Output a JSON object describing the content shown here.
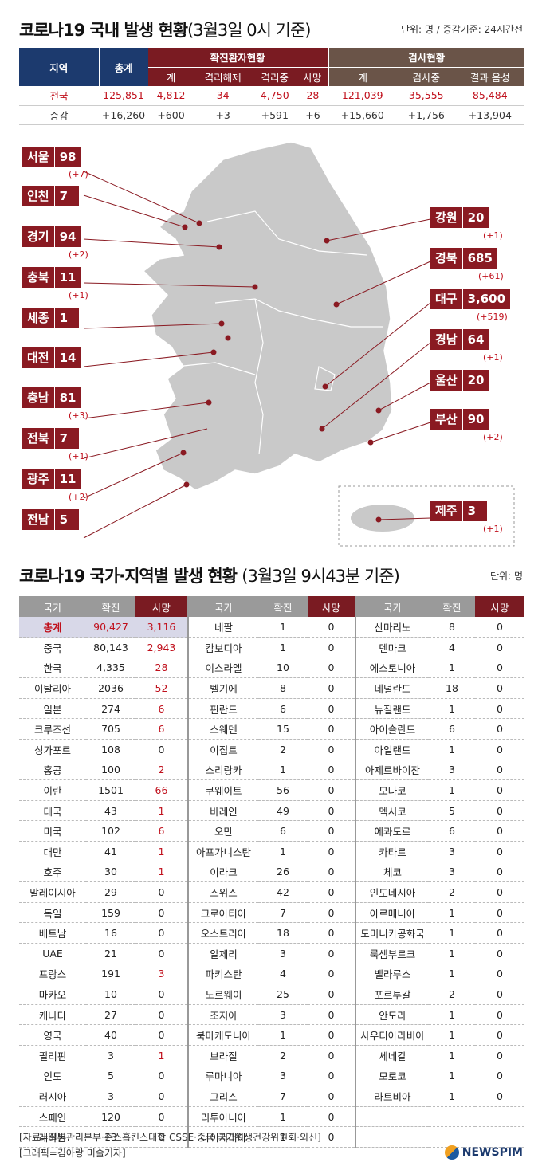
{
  "top": {
    "title": "코로나19 국내 발생 현황",
    "title_paren": "(3월3일 0시 기준)",
    "unit": "단위: 명 / 증감기준: 24시간전",
    "headers": {
      "region": "지역",
      "total": "총계",
      "confirmed_group": "확진환자현황",
      "test_group": "검사현황",
      "c_sum": "계",
      "released": "격리해제",
      "isolated": "격리중",
      "death": "사망",
      "t_sum": "계",
      "testing": "검사중",
      "negative": "결과 음성"
    },
    "row_total": [
      "전국",
      "125,851",
      "4,812",
      "34",
      "4,750",
      "28",
      "121,039",
      "35,555",
      "85,484"
    ],
    "row_delta": [
      "증감",
      "+16,260",
      "+600",
      "+3",
      "+591",
      "+6",
      "+15,660",
      "+1,756",
      "+13,904"
    ]
  },
  "regions": [
    {
      "name": "서울",
      "value": "98",
      "delta": "(+7)"
    },
    {
      "name": "인천",
      "value": "7",
      "delta": ""
    },
    {
      "name": "경기",
      "value": "94",
      "delta": "(+2)"
    },
    {
      "name": "충북",
      "value": "11",
      "delta": "(+1)"
    },
    {
      "name": "세종",
      "value": "1",
      "delta": ""
    },
    {
      "name": "대전",
      "value": "14",
      "delta": ""
    },
    {
      "name": "충남",
      "value": "81",
      "delta": "(+3)"
    },
    {
      "name": "전북",
      "value": "7",
      "delta": "(+1)"
    },
    {
      "name": "광주",
      "value": "11",
      "delta": "(+2)"
    },
    {
      "name": "전남",
      "value": "5",
      "delta": ""
    },
    {
      "name": "강원",
      "value": "20",
      "delta": "(+1)"
    },
    {
      "name": "경북",
      "value": "685",
      "delta": "(+61)"
    },
    {
      "name": "대구",
      "value": "3,600",
      "delta": "(+519)"
    },
    {
      "name": "경남",
      "value": "64",
      "delta": "(+1)"
    },
    {
      "name": "울산",
      "value": "20",
      "delta": ""
    },
    {
      "name": "부산",
      "value": "90",
      "delta": "(+2)"
    },
    {
      "name": "제주",
      "value": "3",
      "delta": "(+1)"
    }
  ],
  "bottom": {
    "title": "코로나19 국가·지역별 발생 현황",
    "title_paren": "(3월3일 9시43분 기준)",
    "unit": "단위: 명",
    "headers": {
      "country": "국가",
      "confirmed": "확진",
      "death": "사망"
    },
    "col1": [
      [
        "총계",
        "90,427",
        "3,116"
      ],
      [
        "중국",
        "80,143",
        "2,943"
      ],
      [
        "한국",
        "4,335",
        "28"
      ],
      [
        "이탈리아",
        "2036",
        "52"
      ],
      [
        "일본",
        "274",
        "6"
      ],
      [
        "크루즈선",
        "705",
        "6"
      ],
      [
        "싱가포르",
        "108",
        "0"
      ],
      [
        "홍콩",
        "100",
        "2"
      ],
      [
        "이란",
        "1501",
        "66"
      ],
      [
        "태국",
        "43",
        "1"
      ],
      [
        "미국",
        "102",
        "6"
      ],
      [
        "대만",
        "41",
        "1"
      ],
      [
        "호주",
        "30",
        "1"
      ],
      [
        "말레이시아",
        "29",
        "0"
      ],
      [
        "독일",
        "159",
        "0"
      ],
      [
        "베트남",
        "16",
        "0"
      ],
      [
        "UAE",
        "21",
        "0"
      ],
      [
        "프랑스",
        "191",
        "3"
      ],
      [
        "마카오",
        "10",
        "0"
      ],
      [
        "캐나다",
        "27",
        "0"
      ],
      [
        "영국",
        "40",
        "0"
      ],
      [
        "필리핀",
        "3",
        "1"
      ],
      [
        "인도",
        "5",
        "0"
      ],
      [
        "러시아",
        "3",
        "0"
      ],
      [
        "스페인",
        "120",
        "0"
      ],
      [
        "레바논",
        "13",
        "0"
      ]
    ],
    "col2": [
      [
        "네팔",
        "1",
        "0"
      ],
      [
        "캄보디아",
        "1",
        "0"
      ],
      [
        "이스라엘",
        "10",
        "0"
      ],
      [
        "벨기에",
        "8",
        "0"
      ],
      [
        "핀란드",
        "6",
        "0"
      ],
      [
        "스웨덴",
        "15",
        "0"
      ],
      [
        "이집트",
        "2",
        "0"
      ],
      [
        "스리랑카",
        "1",
        "0"
      ],
      [
        "쿠웨이트",
        "56",
        "0"
      ],
      [
        "바레인",
        "49",
        "0"
      ],
      [
        "오만",
        "6",
        "0"
      ],
      [
        "아프가니스탄",
        "1",
        "0"
      ],
      [
        "이라크",
        "26",
        "0"
      ],
      [
        "스위스",
        "42",
        "0"
      ],
      [
        "크로아티아",
        "7",
        "0"
      ],
      [
        "오스트리아",
        "18",
        "0"
      ],
      [
        "알제리",
        "3",
        "0"
      ],
      [
        "파키스탄",
        "4",
        "0"
      ],
      [
        "노르웨이",
        "25",
        "0"
      ],
      [
        "조지아",
        "3",
        "0"
      ],
      [
        "북마케도니아",
        "1",
        "0"
      ],
      [
        "브라질",
        "2",
        "0"
      ],
      [
        "루마니아",
        "3",
        "0"
      ],
      [
        "그리스",
        "7",
        "0"
      ],
      [
        "리투아니아",
        "1",
        "0"
      ],
      [
        "나이지리아",
        "1",
        "0"
      ]
    ],
    "col3": [
      [
        "산마리노",
        "8",
        "0"
      ],
      [
        "덴마크",
        "4",
        "0"
      ],
      [
        "에스토니아",
        "1",
        "0"
      ],
      [
        "네덜란드",
        "18",
        "0"
      ],
      [
        "뉴질랜드",
        "1",
        "0"
      ],
      [
        "아이슬란드",
        "6",
        "0"
      ],
      [
        "아일랜드",
        "1",
        "0"
      ],
      [
        "아제르바이잔",
        "3",
        "0"
      ],
      [
        "모나코",
        "1",
        "0"
      ],
      [
        "멕시코",
        "5",
        "0"
      ],
      [
        "에콰도르",
        "6",
        "0"
      ],
      [
        "카타르",
        "3",
        "0"
      ],
      [
        "체코",
        "3",
        "0"
      ],
      [
        "인도네시아",
        "2",
        "0"
      ],
      [
        "아르메니아",
        "1",
        "0"
      ],
      [
        "도미니카공화국",
        "1",
        "0"
      ],
      [
        "룩셈부르크",
        "1",
        "0"
      ],
      [
        "벨라루스",
        "1",
        "0"
      ],
      [
        "포르투갈",
        "2",
        "0"
      ],
      [
        "안도라",
        "1",
        "0"
      ],
      [
        "사우디아라비아",
        "1",
        "0"
      ],
      [
        "세네갈",
        "1",
        "0"
      ],
      [
        "모로코",
        "1",
        "0"
      ],
      [
        "라트비아",
        "1",
        "0"
      ],
      [
        "",
        "",
        ""
      ],
      [
        "",
        "",
        ""
      ]
    ]
  },
  "footer": {
    "source": "[자료=질병관리본부·존스홉킨스대학 CSSE·중국 국가위생건강위원회·외신]",
    "graphic": "[그래픽=김아랑 미술기자]",
    "logo": "NEWSPIM"
  }
}
